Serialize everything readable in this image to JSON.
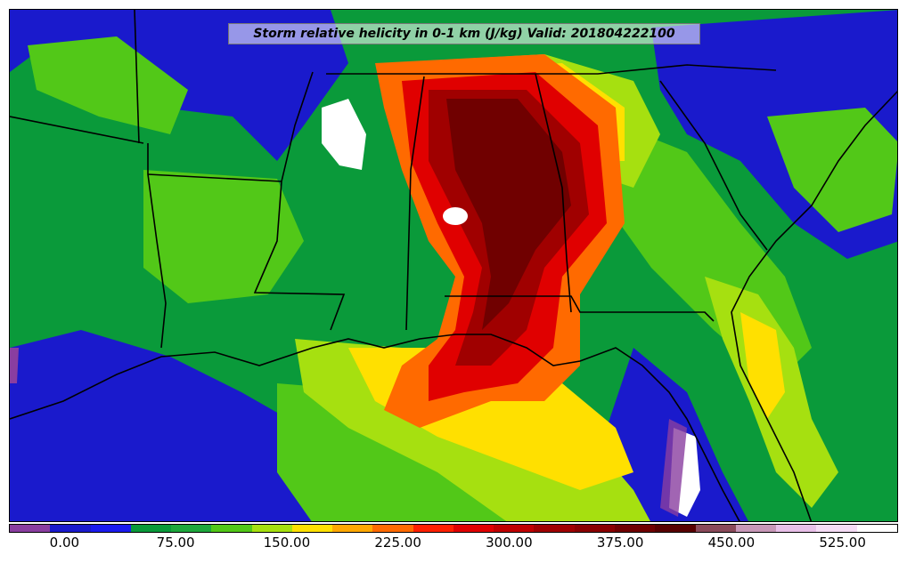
{
  "title": "Storm relative helicity in 0-1 km (J/kg) Valid: 201804222100",
  "colorbar": {
    "colors": [
      "#8a3ea0",
      "#1a1acc",
      "#1a1aee",
      "#0a9a3a",
      "#1ea83c",
      "#52c818",
      "#a6e010",
      "#ffe000",
      "#ffa800",
      "#ff6a00",
      "#ff2000",
      "#e00000",
      "#c00000",
      "#a00000",
      "#8a0000",
      "#700000",
      "#580000",
      "#8a4a5a",
      "#c898b8",
      "#e8c0e8",
      "#f5dcf5",
      "#ffffff"
    ],
    "ticks": [
      "0.00",
      "75.00",
      "150.00",
      "225.00",
      "300.00",
      "375.00",
      "450.00",
      "525.00"
    ],
    "tick_values": [
      0,
      75,
      150,
      225,
      300,
      375,
      450,
      525
    ],
    "range": [
      -37.5,
      562.5
    ]
  }
}
